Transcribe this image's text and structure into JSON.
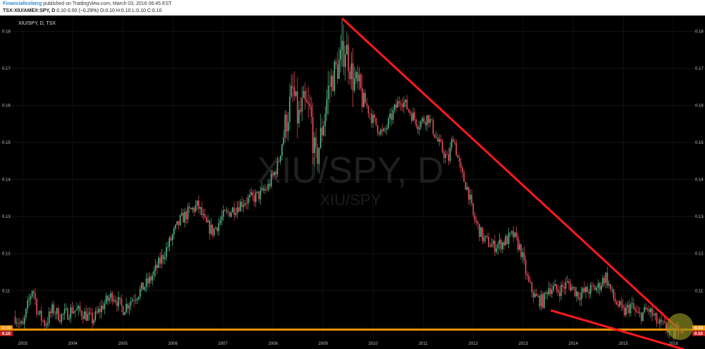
{
  "header": {
    "author": "FinancialIceberg",
    "published": "published on TradingView.com, March 03, 2016 06:45 EST",
    "symbol_line": "TSX:XIU/AMEX:SPY, D",
    "quote_line": "0.10  0.00 (−0.29%)  O:0.10  H:0.10  L:0.10  C:0.10"
  },
  "chart_info": {
    "symbol_label": "XIU/SPY, D, TSX",
    "watermark_main": "XIU/SPY, D",
    "watermark_sub": "XIU/SPY",
    "price_tag": "0.10",
    "line_tag": "0.10"
  },
  "colors": {
    "background": "#000000",
    "up": "#53b987",
    "down": "#eb4d5c",
    "trendline": "#ff1a1a",
    "hline": "#ff9800",
    "circle": "#8c8c1e"
  },
  "chart_data": {
    "type": "candlestick",
    "x_tick_labels": [
      "2003",
      "2004",
      "2005",
      "2006",
      "2007",
      "2008",
      "2009",
      "2010",
      "2011",
      "2012",
      "2013",
      "2014",
      "2015",
      "2016"
    ],
    "y_tick_labels": [
      "0.10",
      "0.11",
      "0.12",
      "0.13",
      "0.14",
      "0.15",
      "0.16",
      "0.17",
      "0.18"
    ],
    "ylim": [
      0.0975,
      0.1835
    ],
    "xlim": [
      2002.8,
      2016.35
    ],
    "series": [
      {
        "x": [
          2002.85,
          2003.0,
          2003.1,
          2003.2,
          2003.3,
          2003.45,
          2003.6,
          2003.75,
          2003.9,
          2004.0,
          2004.2,
          2004.4,
          2004.6,
          2004.8,
          2005.0,
          2005.2,
          2005.35,
          2005.55,
          2005.75,
          2005.9,
          2006.0,
          2006.15,
          2006.3,
          2006.5,
          2006.65,
          2006.8,
          2007.0,
          2007.2,
          2007.4,
          2007.6,
          2007.75,
          2007.9,
          2008.1,
          2008.25,
          2008.4,
          2008.5,
          2008.6,
          2008.75,
          2008.85,
          2009.0,
          2009.1,
          2009.2,
          2009.35,
          2009.45,
          2009.6,
          2009.8,
          2010.0,
          2010.2,
          2010.4,
          2010.55,
          2010.75,
          2010.9,
          2011.1,
          2011.3,
          2011.5,
          2011.6,
          2011.75,
          2011.9,
          2012.0,
          2012.2,
          2012.4,
          2012.6,
          2012.8,
          2012.95,
          2013.1,
          2013.25,
          2013.4,
          2013.5,
          2013.7,
          2013.9,
          2014.1,
          2014.3,
          2014.5,
          2014.65,
          2014.8,
          2015.0,
          2015.15,
          2015.3,
          2015.5,
          2015.7,
          2015.85,
          2016.0,
          2016.1
        ],
        "y": [
          0.103,
          0.1,
          0.106,
          0.111,
          0.104,
          0.101,
          0.105,
          0.103,
          0.104,
          0.105,
          0.104,
          0.102,
          0.106,
          0.109,
          0.105,
          0.108,
          0.11,
          0.113,
          0.118,
          0.122,
          0.125,
          0.129,
          0.131,
          0.133,
          0.128,
          0.126,
          0.13,
          0.132,
          0.134,
          0.135,
          0.136,
          0.138,
          0.144,
          0.155,
          0.164,
          0.156,
          0.16,
          0.158,
          0.144,
          0.155,
          0.164,
          0.168,
          0.172,
          0.176,
          0.167,
          0.162,
          0.156,
          0.152,
          0.158,
          0.162,
          0.158,
          0.155,
          0.157,
          0.15,
          0.145,
          0.152,
          0.142,
          0.137,
          0.13,
          0.124,
          0.122,
          0.123,
          0.125,
          0.121,
          0.112,
          0.108,
          0.107,
          0.111,
          0.11,
          0.112,
          0.109,
          0.11,
          0.111,
          0.114,
          0.108,
          0.104,
          0.106,
          0.103,
          0.105,
          0.101,
          0.1,
          0.098,
          0.1
        ]
      }
    ],
    "annotations": [
      "downward trendline from 2009 peak",
      "lower trendline from 2013",
      "horizontal support line at 0.10",
      "circle marking convergence"
    ]
  }
}
